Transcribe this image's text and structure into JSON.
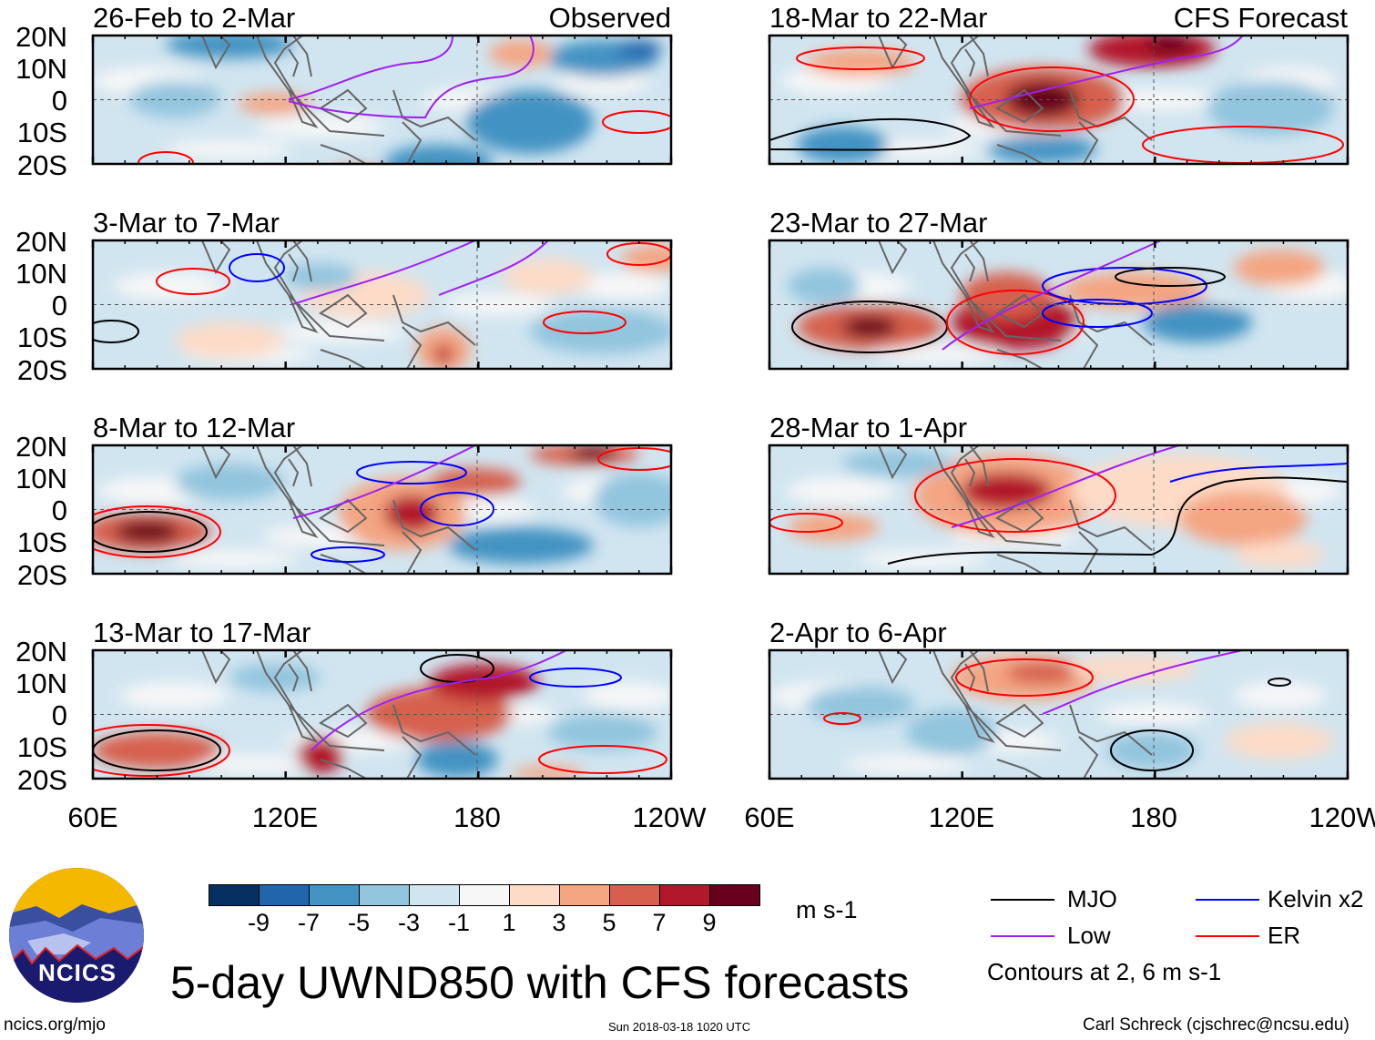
{
  "title": "5-day UWND850 with CFS forecasts",
  "logo_text": "NCICS",
  "panels_left": [
    {
      "title": "26-Feb to 2-Mar",
      "label": "Observed"
    },
    {
      "title": "3-Mar to 7-Mar",
      "label": ""
    },
    {
      "title": "8-Mar to 12-Mar",
      "label": ""
    },
    {
      "title": "13-Mar to 17-Mar",
      "label": ""
    }
  ],
  "panels_right": [
    {
      "title": "18-Mar to 22-Mar",
      "label": "CFS Forecast"
    },
    {
      "title": "23-Mar to 27-Mar",
      "label": ""
    },
    {
      "title": "28-Mar to 1-Apr",
      "label": ""
    },
    {
      "title": "2-Apr to 6-Apr",
      "label": ""
    }
  ],
  "lat_labels": [
    "20N",
    "10N",
    "0",
    "10S",
    "20S"
  ],
  "lon_labels": [
    "60E",
    "120E",
    "180",
    "120W"
  ],
  "colorbar": {
    "colors": [
      "#053061",
      "#2166ac",
      "#4393c3",
      "#92c5de",
      "#d1e5f0",
      "#f7f7f7",
      "#fddbc7",
      "#f4a582",
      "#d6604d",
      "#b2182b",
      "#67001f"
    ],
    "ticks": [
      "-9",
      "-7",
      "-5",
      "-3",
      "-1",
      "1",
      "3",
      "5",
      "7",
      "9"
    ],
    "units": "m s-1"
  },
  "legend": {
    "items": [
      {
        "label": "MJO",
        "color": "#000000"
      },
      {
        "label": "Kelvin x2",
        "color": "#0000ff"
      },
      {
        "label": "Low",
        "color": "#a020f0"
      },
      {
        "label": "ER",
        "color": "#ff0000"
      }
    ],
    "note": "Contours at 2, 6 m s-1"
  },
  "footer": {
    "left": "ncics.org/mjo",
    "center": "Sun 2018-03-18 1020 UTC",
    "right": "Carl Schreck (cjschrec@ncsu.edu)"
  }
}
